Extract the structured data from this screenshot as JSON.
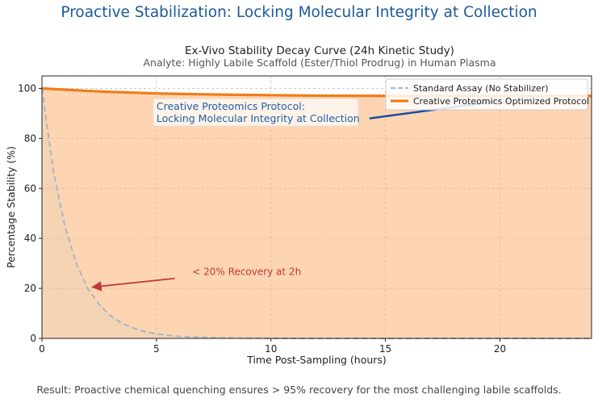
{
  "banner": "Proactive Stabilization: Locking Molecular Integrity at Collection",
  "footer": "Result: Proactive chemical quenching ensures > 95% recovery for the most challenging labile scaffolds.",
  "chart_data": {
    "type": "line",
    "title": "Ex-Vivo Stability Decay Curve (24h Kinetic Study)",
    "subtitle": "Analyte: Highly Labile Scaffold (Ester/Thiol Prodrug) in Human Plasma",
    "xlabel": "Time Post-Sampling (hours)",
    "ylabel": "Percentage Stability (%)",
    "xlim": [
      0,
      24
    ],
    "ylim": [
      0,
      105
    ],
    "xticks": [
      0,
      5,
      10,
      15,
      20
    ],
    "yticks": [
      0,
      20,
      40,
      60,
      80,
      100
    ],
    "grid": true,
    "legend_position": "top-right",
    "series": [
      {
        "name": "Standard Assay (No Stabilizer)",
        "color": "#a9b6c4",
        "style": "dashed",
        "fill_color": "#f2d3b3",
        "x": [
          0,
          0.5,
          1,
          1.5,
          2,
          2.5,
          3,
          3.5,
          4,
          4.5,
          5,
          5.5,
          6,
          7,
          8,
          9,
          10,
          12,
          15,
          20,
          24
        ],
        "y": [
          100,
          67,
          45,
          30,
          20,
          13.5,
          9,
          6,
          4.1,
          2.7,
          1.8,
          1.2,
          0.8,
          0.4,
          0.2,
          0.1,
          0,
          0,
          0,
          0,
          0
        ]
      },
      {
        "name": "Creative Proteomics Optimized Protocol",
        "color": "#ef7d1a",
        "style": "solid",
        "fill_color": "#fdd5b3",
        "x": [
          0,
          1,
          2,
          3,
          4,
          5,
          6,
          8,
          10,
          12,
          15,
          18,
          20,
          24
        ],
        "y": [
          100,
          99.5,
          99,
          98.6,
          98.3,
          98.0,
          97.8,
          97.5,
          97.3,
          97.1,
          97.0,
          97.0,
          97.0,
          97.0
        ]
      }
    ],
    "annotations": [
      {
        "text_lines": [
          "Creative Proteomics Protocol:",
          "Locking Molecular Integrity at Collection"
        ],
        "color": "#1f5fa8",
        "arrow_color": "#1a4fa0",
        "text_at": [
          5,
          83
        ],
        "arrow_from": [
          14.3,
          88
        ],
        "arrow_to": [
          20,
          95
        ]
      },
      {
        "text_lines": [
          "< 20% Recovery at 2h"
        ],
        "color": "#c0393b",
        "arrow_color": "#c0393b",
        "text_at": [
          6,
          24
        ],
        "arrow_from": [
          5.8,
          24
        ],
        "arrow_to": [
          2.2,
          20.5
        ]
      }
    ]
  }
}
